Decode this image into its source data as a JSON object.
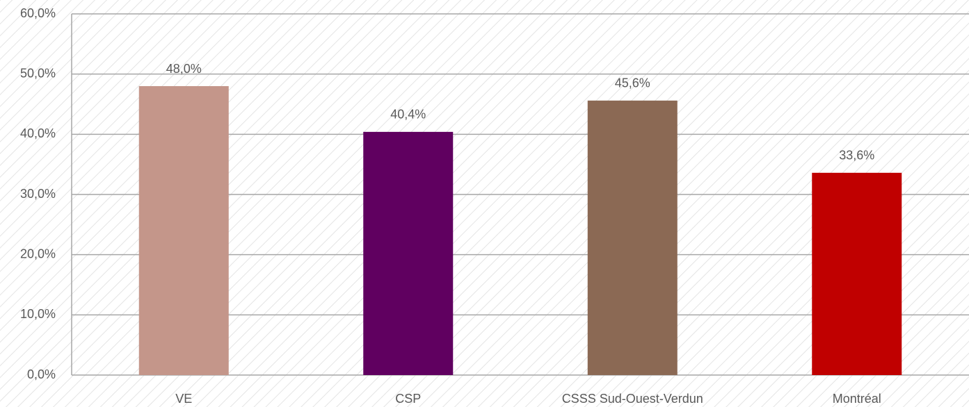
{
  "chart_data": {
    "type": "bar",
    "categories": [
      "VE",
      "CSP",
      "CSSS Sud-Ouest-Verdun",
      "Montréal"
    ],
    "values": [
      48.0,
      40.4,
      45.6,
      33.6
    ],
    "value_labels": [
      "48,0%",
      "40,4%",
      "45,6%",
      "33,6%"
    ],
    "colors": [
      "#c4968a",
      "#600060",
      "#8b6954",
      "#c00000"
    ],
    "ylim": [
      0,
      60
    ],
    "yticks": [
      {
        "value": 0,
        "label": "0,0%"
      },
      {
        "value": 10,
        "label": "10,0%"
      },
      {
        "value": 20,
        "label": "20,0%"
      },
      {
        "value": 30,
        "label": "30,0%"
      },
      {
        "value": 40,
        "label": "40,0%"
      },
      {
        "value": 50,
        "label": "50,0%"
      },
      {
        "value": 60,
        "label": "60,0%"
      }
    ],
    "grid": true
  }
}
